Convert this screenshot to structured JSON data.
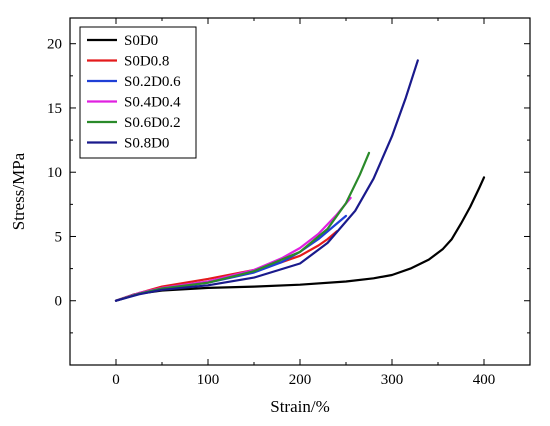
{
  "chart_data": {
    "type": "line",
    "xlabel": "Strain/%",
    "ylabel": "Stress/MPa",
    "xlim": [
      -50,
      450
    ],
    "ylim": [
      -5,
      22
    ],
    "xticks": [
      0,
      100,
      200,
      300,
      400
    ],
    "yticks": [
      0,
      5,
      10,
      15,
      20
    ],
    "grid": false,
    "legend_position": "top-left",
    "series": [
      {
        "name": "S0D0",
        "color": "#000000",
        "x": [
          0,
          20,
          50,
          100,
          150,
          200,
          250,
          280,
          300,
          320,
          340,
          355,
          365,
          375,
          385,
          395,
          400
        ],
        "y": [
          0,
          0.5,
          0.8,
          1.0,
          1.1,
          1.25,
          1.5,
          1.75,
          2.0,
          2.5,
          3.2,
          4.0,
          4.8,
          6.0,
          7.3,
          8.8,
          9.6
        ]
      },
      {
        "name": "S0D0.8",
        "color": "#e41a1c",
        "x": [
          0,
          25,
          50,
          100,
          150,
          180,
          200,
          220,
          230,
          240
        ],
        "y": [
          0,
          0.6,
          1.1,
          1.7,
          2.4,
          3.0,
          3.5,
          4.3,
          4.8,
          5.4
        ]
      },
      {
        "name": "S0.2D0.6",
        "color": "#1f3fd6",
        "x": [
          0,
          25,
          50,
          100,
          150,
          180,
          200,
          220,
          235,
          250
        ],
        "y": [
          0,
          0.55,
          0.9,
          1.4,
          2.2,
          3.0,
          3.8,
          4.8,
          5.7,
          6.6
        ]
      },
      {
        "name": "S0.4D0.4",
        "color": "#e020e0",
        "x": [
          0,
          25,
          50,
          100,
          150,
          180,
          200,
          220,
          240,
          255
        ],
        "y": [
          0,
          0.6,
          1.0,
          1.5,
          2.4,
          3.3,
          4.1,
          5.2,
          6.7,
          8.0
        ]
      },
      {
        "name": "S0.6D0.2",
        "color": "#2a8a2a",
        "x": [
          0,
          25,
          50,
          100,
          150,
          200,
          230,
          250,
          265,
          275
        ],
        "y": [
          0,
          0.55,
          0.95,
          1.4,
          2.3,
          3.8,
          5.6,
          7.6,
          9.8,
          11.5
        ]
      },
      {
        "name": "S0.8D0",
        "color": "#1a1a8c",
        "x": [
          0,
          25,
          50,
          100,
          150,
          200,
          230,
          260,
          280,
          300,
          315,
          328
        ],
        "y": [
          0,
          0.5,
          0.85,
          1.2,
          1.8,
          2.9,
          4.5,
          7.0,
          9.5,
          12.8,
          15.8,
          18.7
        ]
      }
    ]
  }
}
